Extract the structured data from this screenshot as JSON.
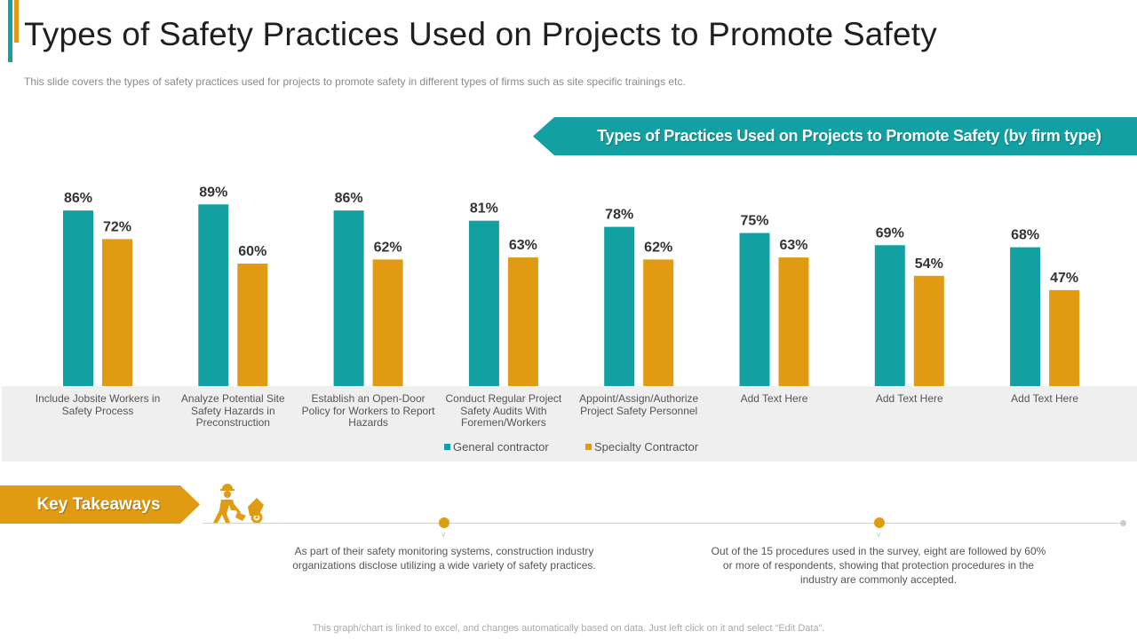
{
  "slide": {
    "title": "Types of Safety Practices Used on Projects to Promote Safety",
    "subtitle": "This slide covers the types of safety practices used for projects to promote safety in different  types of firms such as site specific trainings etc.",
    "footnote": "This graph/chart is linked to excel, and changes automatically based on data. Just left click on it and select “Edit Data”."
  },
  "colors": {
    "teal": "#12a0a3",
    "orange": "#e09b12"
  },
  "chart_data": {
    "type": "bar",
    "title": "Types of Practices Used on Projects to Promote Safety (by firm type)",
    "xlabel": "",
    "ylabel": "",
    "ylim": [
      0,
      100
    ],
    "grid": false,
    "value_suffix": "%",
    "legend_position": "bottom",
    "categories": [
      "Include Jobsite Workers in Safety Process",
      "Analyze Potential Site Safety Hazards in Preconstruction",
      "Establish an  Open-Door Policy for Workers to Report Hazards",
      "Conduct Regular Project Safety Audits With Foremen/Workers",
      "Appoint/Assign/Authorize Project Safety Personnel",
      "Add Text Here",
      "Add Text Here",
      "Add Text Here"
    ],
    "series": [
      {
        "name": "General contractor",
        "color": "#12a0a3",
        "values": [
          86,
          89,
          86,
          81,
          78,
          75,
          69,
          68
        ]
      },
      {
        "name": "Specialty Contractor",
        "color": "#e09b12",
        "values": [
          72,
          60,
          62,
          63,
          62,
          63,
          54,
          47
        ]
      }
    ]
  },
  "key_takeaways": {
    "label": "Key Takeaways",
    "icon": "construction-worker-icon",
    "items": [
      {
        "text": "As part of their safety monitoring systems, construction industry organizations disclose utilizing a wide variety  of safety practices."
      },
      {
        "text": "Out  of the 15 procedures  used in the survey, eight are followed by 60% or more of respondents, showing that protection procedures  in the industry are commonly accepted."
      }
    ]
  }
}
